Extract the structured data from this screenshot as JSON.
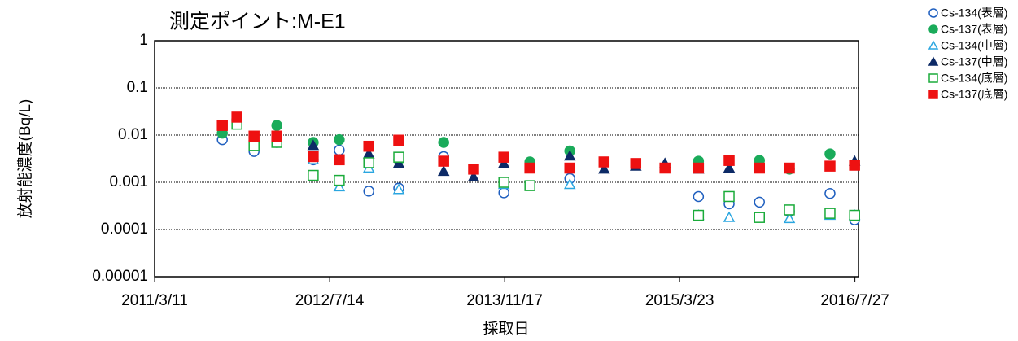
{
  "chart_data": {
    "type": "scatter",
    "title": "測定ポイント:M-E1",
    "x_label": "採取日",
    "y_label": "放射能濃度(Bq/L)",
    "x": [
      "2011/9/17",
      "2011/10/28",
      "2011/12/15",
      "2012/2/17",
      "2012/5/29",
      "2012/8/10",
      "2012/11/1",
      "2013/1/24",
      "2013/5/30",
      "2013/8/22",
      "2013/11/15",
      "2014/1/27",
      "2014/5/19",
      "2014/8/23",
      "2014/11/20",
      "2015/2/10",
      "2015/5/15",
      "2015/8/9",
      "2015/11/2",
      "2016/1/25",
      "2016/5/18",
      "2016/7/26"
    ],
    "xlim": [
      "2011/3/11",
      "2016/8/6"
    ],
    "xticks": [
      "2011/3/11",
      "2012/7/14",
      "2013/11/17",
      "2015/3/23",
      "2016/7/27"
    ],
    "ylim": [
      1e-05,
      1
    ],
    "yticks": [
      1,
      0.1,
      0.01,
      0.001,
      0.0001,
      1e-05
    ],
    "log_y": true,
    "grid": true,
    "legend": "upper right",
    "series": [
      {
        "name": "Cs-134(表層)",
        "color": "#1f5fbf",
        "marker": "circle",
        "filled": false,
        "values": [
          0.008,
          0.02,
          0.0045,
          0.007,
          0.003,
          0.0048,
          0.00065,
          0.00075,
          0.0035,
          null,
          0.0006,
          null,
          0.0012,
          null,
          null,
          null,
          0.0005,
          0.00035,
          0.00038,
          0.00024,
          0.00058,
          0.00016
        ]
      },
      {
        "name": "Cs-137(表層)",
        "color": "#1aab5a",
        "marker": "circle",
        "filled": true,
        "values": [
          0.011,
          0.022,
          0.007,
          0.016,
          0.007,
          0.008,
          0.003,
          0.003,
          0.007,
          null,
          null,
          0.0027,
          0.0046,
          null,
          null,
          null,
          0.0028,
          null,
          0.0029,
          0.0019,
          0.004,
          0.0024
        ]
      },
      {
        "name": "Cs-134(中層)",
        "color": "#2aa6e0",
        "marker": "triangle",
        "filled": false,
        "values": [
          null,
          null,
          null,
          null,
          0.003,
          0.0008,
          0.002,
          0.0007,
          null,
          null,
          0.0009,
          null,
          0.0009,
          null,
          null,
          null,
          0.0002,
          0.00018,
          null,
          0.00017,
          0.0002,
          0.0002
        ]
      },
      {
        "name": "Cs-137(中層)",
        "color": "#0d2a66",
        "marker": "triangle",
        "filled": true,
        "values": [
          null,
          null,
          null,
          null,
          0.006,
          0.003,
          0.004,
          0.0025,
          0.0017,
          0.0013,
          0.0025,
          null,
          0.0036,
          0.0019,
          0.0022,
          0.0025,
          0.0019,
          0.002,
          null,
          null,
          null,
          0.0028
        ]
      },
      {
        "name": "Cs-134(底層)",
        "color": "#1aab3a",
        "marker": "square",
        "filled": false,
        "values": [
          null,
          0.017,
          0.006,
          0.007,
          0.0014,
          0.0011,
          0.0026,
          0.0034,
          null,
          null,
          0.001,
          0.00085,
          null,
          null,
          null,
          null,
          0.0002,
          0.0005,
          0.00018,
          0.00026,
          0.00022,
          0.0002
        ]
      },
      {
        "name": "Cs-137(底層)",
        "color": "#ee1111",
        "marker": "square",
        "filled": true,
        "values": [
          0.016,
          0.024,
          0.0095,
          0.0095,
          0.0035,
          0.003,
          0.0058,
          0.0078,
          0.0028,
          0.0019,
          0.0034,
          0.002,
          0.002,
          0.0027,
          0.0025,
          0.002,
          0.002,
          0.0029,
          0.002,
          0.002,
          0.0022,
          0.0023
        ]
      }
    ]
  }
}
